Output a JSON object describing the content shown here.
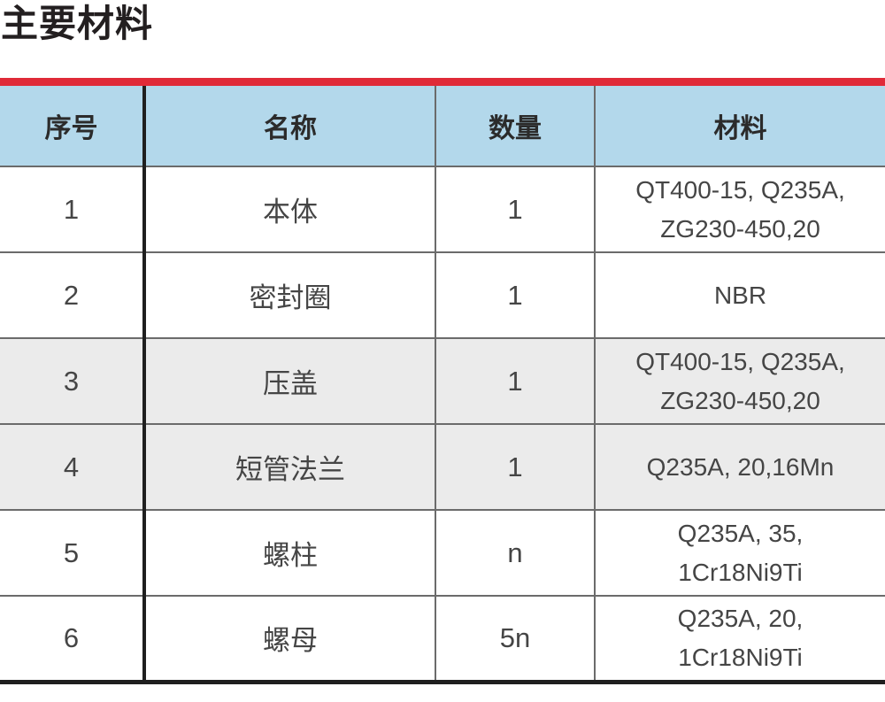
{
  "page": {
    "title": "主要材料"
  },
  "colors": {
    "accent_red": "#E02A38",
    "header_blue": "#B3D8EB",
    "shaded_row": "#EBEBEB",
    "thick_border": "#1F1F1F",
    "thin_border": "#6B6B6B"
  },
  "table": {
    "headers": [
      "序号",
      "名称",
      "数量",
      "材料"
    ],
    "rows": [
      {
        "no": "1",
        "name": "本体",
        "qty": "1",
        "material": "QT400-15, Q235A,\nZG230-450,20",
        "shaded": false
      },
      {
        "no": "2",
        "name": "密封圈",
        "qty": "1",
        "material": "NBR",
        "shaded": false
      },
      {
        "no": "3",
        "name": "压盖",
        "qty": "1",
        "material": "QT400-15, Q235A,\nZG230-450,20",
        "shaded": true
      },
      {
        "no": "4",
        "name": "短管法兰",
        "qty": "1",
        "material": "Q235A, 20,16Mn",
        "shaded": true
      },
      {
        "no": "5",
        "name": "螺柱",
        "qty": "n",
        "material": "Q235A, 35,\n1Cr18Ni9Ti",
        "shaded": false
      },
      {
        "no": "6",
        "name": "螺母",
        "qty": "5n",
        "material": "Q235A, 20,\n1Cr18Ni9Ti",
        "shaded": false
      }
    ]
  }
}
